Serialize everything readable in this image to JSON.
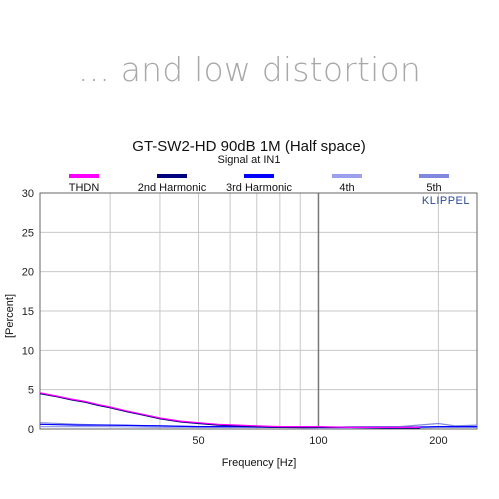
{
  "headline": "... and low distortion",
  "chart_data": {
    "type": "line",
    "title": "GT-SW2-HD  90dB 1M (Half space)",
    "subtitle": "Signal at IN1",
    "xlabel": "Frequency [Hz]",
    "ylabel": "[Percent]",
    "xscale": "log",
    "xlim": [
      20,
      250
    ],
    "ylim": [
      0,
      30
    ],
    "xticks": [
      50,
      100,
      200
    ],
    "yticks": [
      0,
      5,
      10,
      15,
      20,
      25,
      30
    ],
    "watermark": "KLIPPEL",
    "grid": true,
    "legend_position": "top",
    "series": [
      {
        "name": "THDN",
        "color": "#ff00ff",
        "x": [
          20,
          22,
          24,
          26,
          28,
          30,
          33,
          36,
          40,
          45,
          50,
          56,
          63,
          70,
          80,
          90,
          100,
          120,
          150,
          180
        ],
        "values": [
          4.6,
          4.2,
          3.8,
          3.5,
          3.1,
          2.8,
          2.3,
          1.9,
          1.4,
          1.0,
          0.8,
          0.6,
          0.5,
          0.4,
          0.3,
          0.3,
          0.3,
          0.2,
          0.2,
          0.2
        ]
      },
      {
        "name": "2nd Harmonic",
        "color": "#000080",
        "x": [
          20,
          22,
          24,
          26,
          28,
          30,
          33,
          36,
          40,
          45,
          50,
          56,
          63,
          70,
          80,
          90,
          100,
          120,
          150,
          180
        ],
        "values": [
          4.5,
          4.1,
          3.7,
          3.4,
          3.0,
          2.7,
          2.2,
          1.8,
          1.3,
          0.9,
          0.7,
          0.5,
          0.4,
          0.3,
          0.2,
          0.2,
          0.2,
          0.2,
          0.1,
          0.1
        ]
      },
      {
        "name": "3rd Harmonic",
        "color": "#0000ff",
        "x": [
          20,
          25,
          30,
          40,
          50,
          63,
          80,
          100,
          130,
          160,
          200,
          250
        ],
        "values": [
          0.6,
          0.5,
          0.5,
          0.4,
          0.3,
          0.3,
          0.2,
          0.2,
          0.2,
          0.2,
          0.3,
          0.3
        ]
      },
      {
        "name": "4th",
        "color": "#9aa0ee",
        "x": [
          20,
          25,
          30,
          40,
          50,
          63,
          80,
          100,
          130,
          160,
          200,
          250
        ],
        "values": [
          0.3,
          0.3,
          0.3,
          0.2,
          0.2,
          0.2,
          0.2,
          0.1,
          0.1,
          0.1,
          0.2,
          0.2
        ]
      },
      {
        "name": "5th",
        "color": "#8088dd",
        "x": [
          20,
          25,
          30,
          40,
          50,
          63,
          80,
          100,
          130,
          160,
          200,
          220,
          250
        ],
        "values": [
          0.8,
          0.6,
          0.5,
          0.4,
          0.3,
          0.3,
          0.2,
          0.2,
          0.3,
          0.3,
          0.7,
          0.4,
          0.5
        ]
      }
    ]
  }
}
